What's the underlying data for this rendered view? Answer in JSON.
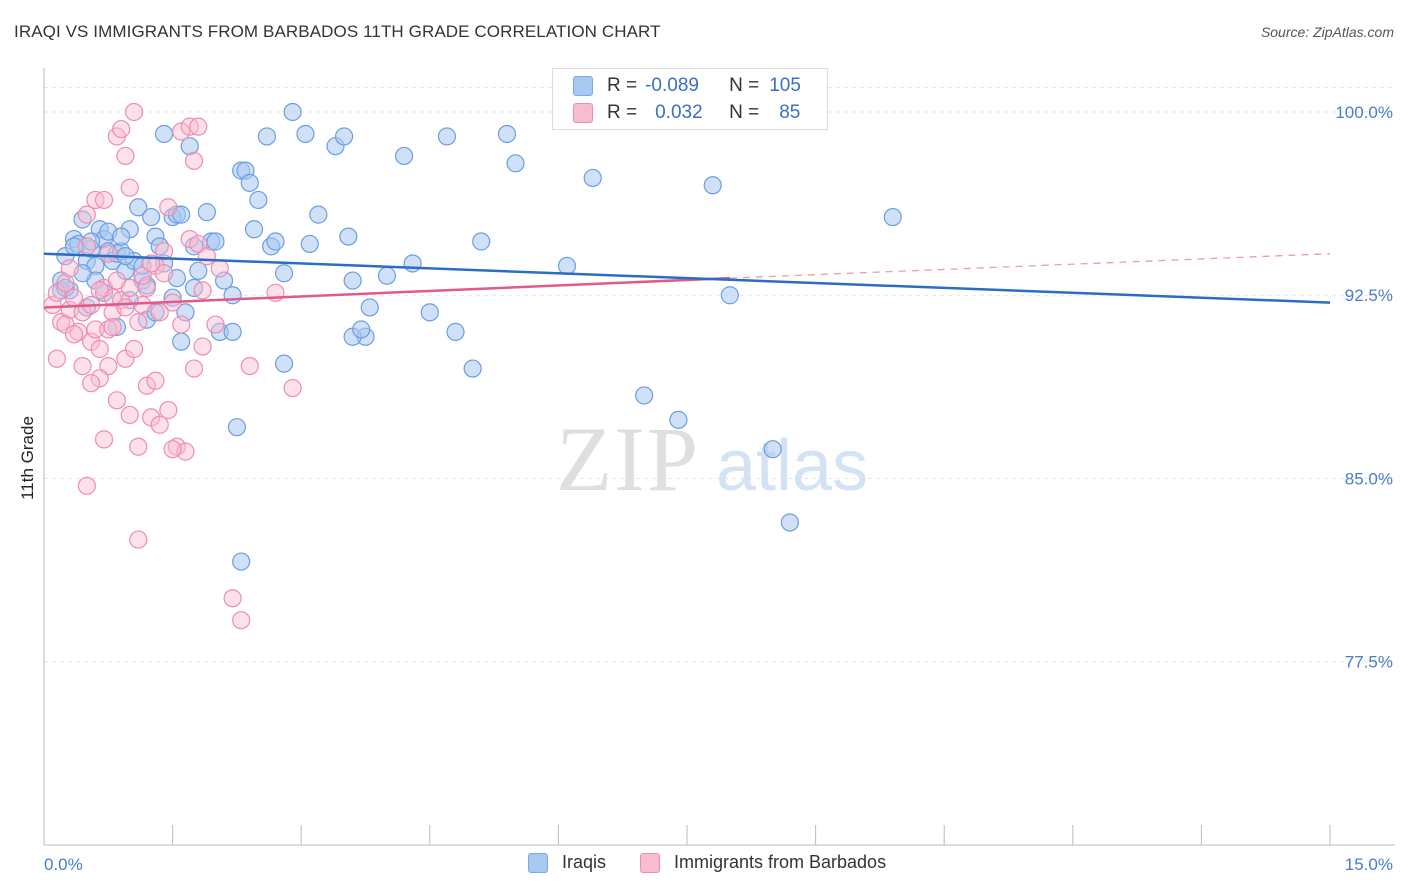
{
  "title": "IRAQI VS IMMIGRANTS FROM BARBADOS 11TH GRADE CORRELATION CHART",
  "source": "Source: ZipAtlas.com",
  "watermark": {
    "zip": "ZIP",
    "atlas": "atlas"
  },
  "chart_data": {
    "type": "scatter",
    "title": "IRAQI VS IMMIGRANTS FROM BARBADOS 11TH GRADE CORRELATION CHART",
    "xlabel": "",
    "ylabel": "11th Grade",
    "xlim": [
      0,
      15
    ],
    "ylim": [
      70,
      101.8
    ],
    "x_tick_labels": [
      "0.0%",
      "15.0%"
    ],
    "y_ticks": [
      77.5,
      85.0,
      92.5,
      100.0
    ],
    "y_tick_labels": [
      "77.5%",
      "85.0%",
      "92.5%",
      "100.0%"
    ],
    "grid": true,
    "legend_position": "top-center",
    "series": [
      {
        "name": "Iraqis",
        "color": "#7aa8e8",
        "line_color": "#2b6cc4",
        "R": "-0.089",
        "N": "105",
        "trend": {
          "x": [
            0,
            15
          ],
          "y": [
            94.2,
            92.2
          ]
        },
        "points": [
          [
            0.2,
            93.1
          ],
          [
            0.25,
            94.1
          ],
          [
            0.3,
            92.7
          ],
          [
            0.35,
            94.8
          ],
          [
            0.4,
            94.6
          ],
          [
            0.45,
            95.6
          ],
          [
            0.5,
            93.9
          ],
          [
            0.55,
            94.4
          ],
          [
            0.6,
            93.7
          ],
          [
            0.65,
            95.2
          ],
          [
            0.7,
            94.8
          ],
          [
            0.75,
            94.3
          ],
          [
            0.8,
            93.9
          ],
          [
            0.85,
            94.2
          ],
          [
            0.9,
            94.3
          ],
          [
            0.95,
            93.5
          ],
          [
            1.0,
            95.2
          ],
          [
            1.05,
            93.9
          ],
          [
            1.1,
            96.1
          ],
          [
            1.15,
            93.1
          ],
          [
            1.2,
            91.5
          ],
          [
            1.25,
            95.7
          ],
          [
            1.3,
            94.9
          ],
          [
            1.35,
            94.5
          ],
          [
            1.4,
            99.1
          ],
          [
            1.5,
            95.7
          ],
          [
            1.55,
            95.8
          ],
          [
            1.6,
            95.8
          ],
          [
            1.7,
            98.6
          ],
          [
            1.75,
            94.5
          ],
          [
            1.8,
            93.5
          ],
          [
            1.9,
            95.9
          ],
          [
            1.95,
            94.7
          ],
          [
            2.0,
            94.7
          ],
          [
            2.1,
            93.1
          ],
          [
            2.2,
            92.5
          ],
          [
            2.3,
            97.6
          ],
          [
            2.35,
            97.6
          ],
          [
            2.4,
            97.1
          ],
          [
            2.45,
            95.2
          ],
          [
            2.5,
            96.4
          ],
          [
            2.6,
            99.0
          ],
          [
            2.65,
            94.5
          ],
          [
            2.7,
            94.7
          ],
          [
            2.8,
            93.4
          ],
          [
            2.9,
            100.0
          ],
          [
            3.05,
            99.1
          ],
          [
            3.1,
            94.6
          ],
          [
            3.2,
            95.8
          ],
          [
            3.4,
            98.6
          ],
          [
            3.5,
            99.0
          ],
          [
            3.55,
            94.9
          ],
          [
            3.6,
            93.1
          ],
          [
            3.75,
            90.8
          ],
          [
            3.8,
            92.0
          ],
          [
            4.2,
            98.2
          ],
          [
            4.3,
            93.8
          ],
          [
            4.5,
            91.8
          ],
          [
            4.7,
            99.0
          ],
          [
            4.8,
            91.0
          ],
          [
            5.0,
            89.5
          ],
          [
            5.1,
            94.7
          ],
          [
            5.4,
            99.1
          ],
          [
            5.5,
            97.9
          ],
          [
            6.1,
            93.7
          ],
          [
            6.4,
            97.3
          ],
          [
            7.0,
            88.4
          ],
          [
            7.4,
            87.4
          ],
          [
            7.8,
            97.0
          ],
          [
            8.0,
            92.5
          ],
          [
            8.5,
            86.2
          ],
          [
            8.7,
            83.2
          ],
          [
            9.9,
            95.7
          ],
          [
            0.2,
            92.7
          ],
          [
            0.35,
            94.5
          ],
          [
            0.5,
            92.0
          ],
          [
            0.6,
            93.1
          ],
          [
            0.75,
            95.1
          ],
          [
            0.9,
            94.9
          ],
          [
            1.0,
            92.3
          ],
          [
            1.15,
            93.7
          ],
          [
            1.3,
            91.8
          ],
          [
            1.5,
            92.4
          ],
          [
            1.6,
            90.6
          ],
          [
            1.65,
            91.8
          ],
          [
            1.75,
            92.8
          ],
          [
            2.05,
            91.0
          ],
          [
            2.2,
            91.0
          ],
          [
            2.25,
            87.1
          ],
          [
            2.3,
            81.6
          ],
          [
            2.8,
            89.7
          ],
          [
            3.6,
            90.8
          ],
          [
            3.7,
            91.1
          ],
          [
            4.0,
            93.3
          ],
          [
            0.25,
            92.8
          ],
          [
            0.45,
            93.4
          ],
          [
            0.55,
            94.7
          ],
          [
            0.7,
            92.6
          ],
          [
            0.85,
            91.2
          ],
          [
            0.95,
            94.1
          ],
          [
            1.2,
            92.9
          ],
          [
            1.4,
            93.8
          ],
          [
            1.55,
            93.2
          ]
        ]
      },
      {
        "name": "Immigrants from Barbados",
        "color": "#f08cb0",
        "line_color": "#e05a8a",
        "R": "0.032",
        "N": "85",
        "trend": {
          "x": [
            0,
            8
          ],
          "y": [
            92.0,
            93.2
          ]
        },
        "trend_dashed": {
          "x": [
            8,
            15
          ],
          "y": [
            93.2,
            94.2
          ]
        },
        "points": [
          [
            0.1,
            92.1
          ],
          [
            0.15,
            92.6
          ],
          [
            0.2,
            91.4
          ],
          [
            0.25,
            93.0
          ],
          [
            0.3,
            91.9
          ],
          [
            0.35,
            92.4
          ],
          [
            0.4,
            91.0
          ],
          [
            0.45,
            91.8
          ],
          [
            0.5,
            94.5
          ],
          [
            0.55,
            90.6
          ],
          [
            0.6,
            91.1
          ],
          [
            0.65,
            90.3
          ],
          [
            0.7,
            92.8
          ],
          [
            0.75,
            89.6
          ],
          [
            0.8,
            92.4
          ],
          [
            0.85,
            88.2
          ],
          [
            0.9,
            92.3
          ],
          [
            0.95,
            89.9
          ],
          [
            1.0,
            92.8
          ],
          [
            1.05,
            90.3
          ],
          [
            1.1,
            91.4
          ],
          [
            1.15,
            92.1
          ],
          [
            1.2,
            92.8
          ],
          [
            1.25,
            87.5
          ],
          [
            1.3,
            93.7
          ],
          [
            1.35,
            91.8
          ],
          [
            1.4,
            93.4
          ],
          [
            1.45,
            96.1
          ],
          [
            1.5,
            92.2
          ],
          [
            1.55,
            86.3
          ],
          [
            1.6,
            91.3
          ],
          [
            1.65,
            86.1
          ],
          [
            1.7,
            94.8
          ],
          [
            1.75,
            89.5
          ],
          [
            1.8,
            94.6
          ],
          [
            1.85,
            92.7
          ],
          [
            2.0,
            91.3
          ],
          [
            2.05,
            93.6
          ],
          [
            2.2,
            80.1
          ],
          [
            2.3,
            79.2
          ],
          [
            2.4,
            89.6
          ],
          [
            2.7,
            92.6
          ],
          [
            2.9,
            88.7
          ],
          [
            0.3,
            93.6
          ],
          [
            0.5,
            95.8
          ],
          [
            0.6,
            96.4
          ],
          [
            0.7,
            96.4
          ],
          [
            0.75,
            94.2
          ],
          [
            0.8,
            91.8
          ],
          [
            0.85,
            99.0
          ],
          [
            0.9,
            99.3
          ],
          [
            0.95,
            98.2
          ],
          [
            1.0,
            96.9
          ],
          [
            1.05,
            100.0
          ],
          [
            1.1,
            82.5
          ],
          [
            1.15,
            93.3
          ],
          [
            1.2,
            88.8
          ],
          [
            1.25,
            93.8
          ],
          [
            1.3,
            89.0
          ],
          [
            1.35,
            87.2
          ],
          [
            1.4,
            94.3
          ],
          [
            1.45,
            87.8
          ],
          [
            1.5,
            86.2
          ],
          [
            1.6,
            99.2
          ],
          [
            1.7,
            99.4
          ],
          [
            1.75,
            98.0
          ],
          [
            1.8,
            99.4
          ],
          [
            1.85,
            90.4
          ],
          [
            1.9,
            94.1
          ],
          [
            0.15,
            89.9
          ],
          [
            0.25,
            91.3
          ],
          [
            0.35,
            90.9
          ],
          [
            0.45,
            89.6
          ],
          [
            0.55,
            92.1
          ],
          [
            0.65,
            92.7
          ],
          [
            0.75,
            91.1
          ],
          [
            0.85,
            93.1
          ],
          [
            0.95,
            92.0
          ],
          [
            0.5,
            84.7
          ],
          [
            0.65,
            89.1
          ],
          [
            0.55,
            88.9
          ],
          [
            1.0,
            87.6
          ],
          [
            1.1,
            86.3
          ],
          [
            0.7,
            86.6
          ],
          [
            0.8,
            91.2
          ]
        ]
      }
    ]
  },
  "legend": {
    "r_label": "R =",
    "n_label": "N =",
    "items": [
      {
        "name": "Iraqis",
        "color": "#a9c8f0",
        "border": "#7aa8e8",
        "R": "-0.089",
        "N": "105"
      },
      {
        "name": "Immigrants from Barbados",
        "color": "#f8bcd0",
        "border": "#f08cb0",
        "R": "0.032",
        "N": "85"
      }
    ]
  }
}
